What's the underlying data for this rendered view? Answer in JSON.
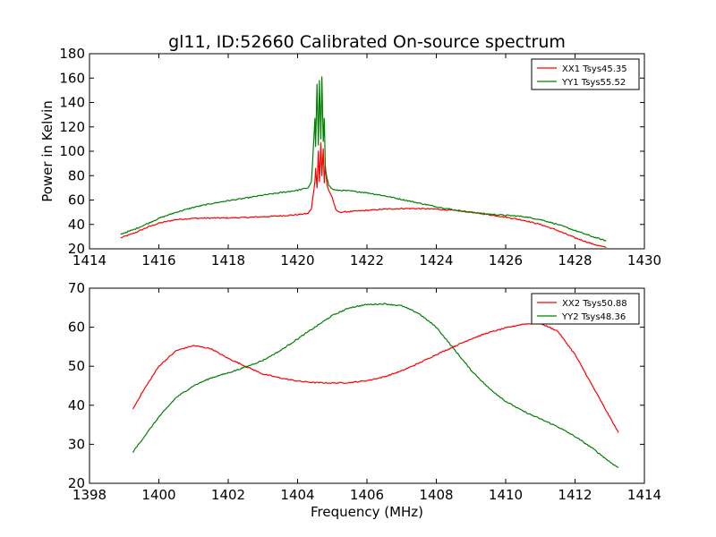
{
  "figure": {
    "title": "gl11, ID:52660 Calibrated On-source spectrum",
    "ylabel": "Power in Kelvin",
    "xlabel": "Frequency (MHz)"
  },
  "chart_data": [
    {
      "type": "line",
      "title": "gl11, ID:52660 Calibrated On-source spectrum",
      "xlabel": "",
      "ylabel": "Power in Kelvin",
      "xlim": [
        1414,
        1430
      ],
      "ylim": [
        20,
        180
      ],
      "xticks": [
        1414,
        1416,
        1418,
        1420,
        1422,
        1424,
        1426,
        1428,
        1430
      ],
      "yticks": [
        20,
        40,
        60,
        80,
        100,
        120,
        140,
        160,
        180
      ],
      "grid": false,
      "legend_position": "top-right",
      "series": [
        {
          "name": "XX1 Tsys45.35",
          "color": "#ff0000",
          "x": [
            1414.9,
            1415.3,
            1415.7,
            1416.0,
            1416.5,
            1417.0,
            1417.5,
            1418.0,
            1418.5,
            1419.0,
            1419.5,
            1420.0,
            1420.3,
            1420.4,
            1420.5,
            1420.52,
            1420.56,
            1420.6,
            1420.63,
            1420.67,
            1420.7,
            1420.74,
            1420.77,
            1420.8,
            1420.85,
            1420.9,
            1421.0,
            1421.1,
            1421.2,
            1421.5,
            1422.0,
            1422.5,
            1423.0,
            1423.5,
            1424.0,
            1424.5,
            1425.0,
            1425.5,
            1426.0,
            1426.5,
            1427.0,
            1427.5,
            1428.0,
            1428.5,
            1428.9
          ],
          "y": [
            29,
            33,
            38,
            41,
            44,
            45,
            45.2,
            45.3,
            45.7,
            46.3,
            47,
            48,
            49,
            53,
            75,
            86,
            70,
            100,
            75,
            107,
            80,
            102,
            74,
            88,
            72,
            68,
            62,
            52,
            50,
            50.5,
            51.5,
            52.5,
            53,
            53,
            52.5,
            51.5,
            50,
            48,
            46,
            43.5,
            40,
            35,
            29,
            24,
            21
          ]
        },
        {
          "name": "YY1 Tsys55.52",
          "color": "#008000",
          "x": [
            1414.9,
            1415.3,
            1415.7,
            1416.0,
            1416.5,
            1417.0,
            1417.5,
            1418.0,
            1418.5,
            1419.0,
            1419.5,
            1420.0,
            1420.3,
            1420.4,
            1420.45,
            1420.5,
            1420.52,
            1420.56,
            1420.6,
            1420.63,
            1420.67,
            1420.7,
            1420.74,
            1420.77,
            1420.8,
            1420.85,
            1420.9,
            1421.0,
            1421.1,
            1421.2,
            1421.5,
            1422.0,
            1422.5,
            1423.0,
            1423.5,
            1424.0,
            1424.5,
            1425.0,
            1425.5,
            1426.0,
            1426.5,
            1427.0,
            1427.5,
            1428.0,
            1428.5,
            1428.9
          ],
          "y": [
            32,
            36,
            41,
            45,
            50,
            54,
            57,
            59.5,
            61.5,
            64,
            66,
            68,
            70,
            75,
            100,
            127,
            104,
            155,
            105,
            158,
            110,
            161,
            108,
            127,
            86,
            78,
            72,
            69,
            68,
            68,
            67.5,
            66,
            63.5,
            60.5,
            57.5,
            54.5,
            52,
            50,
            48.5,
            47.5,
            46.5,
            44,
            40,
            35,
            30,
            26.5
          ]
        }
      ]
    },
    {
      "type": "line",
      "title": "",
      "xlabel": "Frequency (MHz)",
      "ylabel": "",
      "xlim": [
        1398,
        1414
      ],
      "ylim": [
        20,
        70
      ],
      "xticks": [
        1398,
        1400,
        1402,
        1404,
        1406,
        1408,
        1410,
        1412,
        1414
      ],
      "yticks": [
        20,
        30,
        40,
        50,
        60,
        70
      ],
      "grid": false,
      "legend_position": "top-right",
      "series": [
        {
          "name": "XX2 Tsys50.88",
          "color": "#ff0000",
          "x": [
            1399.25,
            1399.5,
            1400.0,
            1400.5,
            1401.0,
            1401.5,
            1402.0,
            1402.5,
            1403.0,
            1403.5,
            1404.0,
            1404.5,
            1405.0,
            1405.5,
            1406.0,
            1406.5,
            1407.0,
            1407.5,
            1408.0,
            1408.5,
            1409.0,
            1409.5,
            1410.0,
            1410.5,
            1411.0,
            1411.5,
            1412.0,
            1412.5,
            1413.0,
            1413.25
          ],
          "y": [
            39,
            43,
            50,
            54,
            55.3,
            54.5,
            52,
            50,
            48,
            47,
            46.2,
            45.8,
            45.7,
            45.8,
            46.3,
            47.3,
            48.8,
            50.8,
            53,
            55,
            57,
            58.6,
            59.8,
            60.8,
            61,
            59,
            53,
            45,
            37,
            33
          ]
        },
        {
          "name": "YY2 Tsys48.36",
          "color": "#008000",
          "x": [
            1399.25,
            1399.5,
            1400.0,
            1400.5,
            1401.0,
            1401.5,
            1402.0,
            1402.5,
            1403.0,
            1403.5,
            1404.0,
            1404.5,
            1405.0,
            1405.5,
            1406.0,
            1406.5,
            1407.0,
            1407.5,
            1408.0,
            1408.5,
            1409.0,
            1409.5,
            1410.0,
            1410.5,
            1411.0,
            1411.5,
            1412.0,
            1412.5,
            1413.0,
            1413.25
          ],
          "y": [
            28,
            31,
            37,
            42,
            45,
            47,
            48.3,
            49.8,
            51.5,
            54,
            57,
            60,
            63,
            65,
            65.8,
            66,
            65.5,
            63.5,
            60,
            54.5,
            49,
            44.5,
            41,
            38.5,
            36.5,
            34.5,
            32,
            29,
            25.5,
            24
          ]
        }
      ]
    }
  ]
}
